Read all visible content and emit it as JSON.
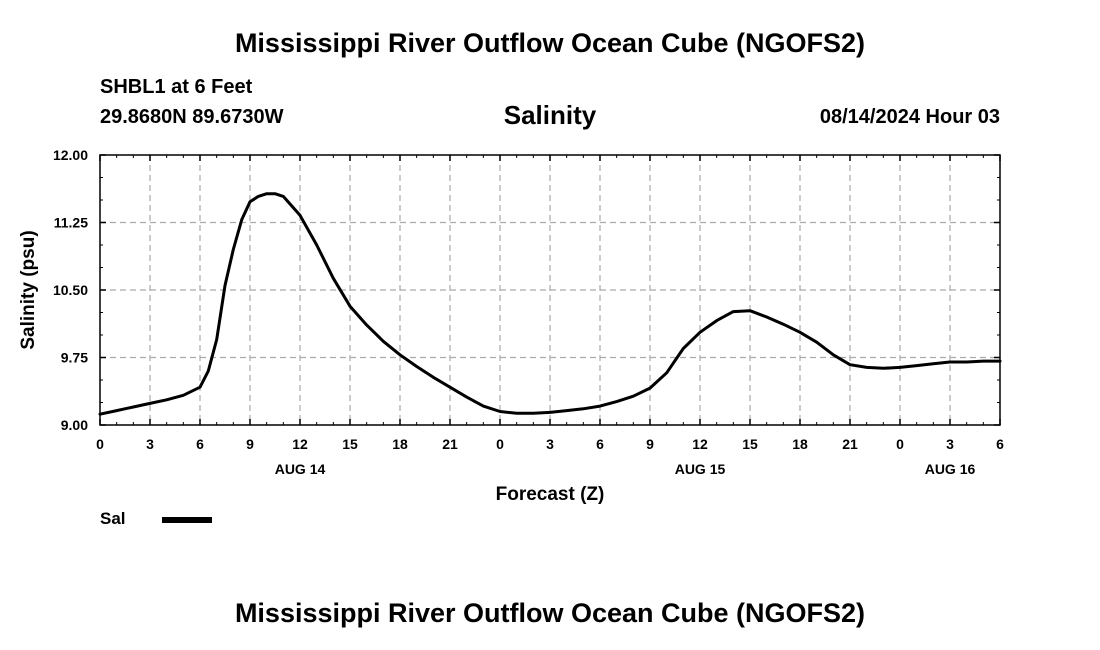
{
  "header": {
    "title": "Mississippi River Outflow Ocean Cube (NGOFS2)",
    "station": "SHBL1 at 6 Feet",
    "coords": "29.8680N  89.6730W",
    "subtitle": "Salinity",
    "datetime": "08/14/2024 Hour 03"
  },
  "footer": {
    "title": "Mississippi River Outflow Ocean Cube (NGOFS2)"
  },
  "legend": {
    "label": "Sal"
  },
  "chart_data": {
    "type": "line",
    "title": "Salinity",
    "xlabel": "Forecast (Z)",
    "ylabel": "Salinity (psu)",
    "ylim": [
      9.0,
      12.0
    ],
    "xlim": [
      0,
      54
    ],
    "grid": true,
    "legend_position": "bottom-left",
    "y_ticks": [
      "9.00",
      "9.75",
      "10.50",
      "11.25",
      "12.00"
    ],
    "y_tick_values": [
      9.0,
      9.75,
      10.5,
      11.25,
      12.0
    ],
    "x_ticks": [
      "0",
      "3",
      "6",
      "9",
      "12",
      "15",
      "18",
      "21",
      "0",
      "3",
      "6",
      "9",
      "12",
      "15",
      "18",
      "21",
      "0",
      "3",
      "6"
    ],
    "day_labels": [
      {
        "label": "AUG 14",
        "hour": 12
      },
      {
        "label": "AUG 15",
        "hour": 36
      },
      {
        "label": "AUG 16",
        "hour": 51
      }
    ],
    "series": [
      {
        "name": "Sal",
        "color": "#000000",
        "x": [
          0,
          1,
          2,
          3,
          4,
          5,
          6,
          6.5,
          7,
          7.5,
          8,
          8.5,
          9,
          9.5,
          10,
          10.5,
          11,
          12,
          13,
          14,
          15,
          16,
          17,
          18,
          19,
          20,
          21,
          22,
          23,
          24,
          25,
          26,
          27,
          28,
          29,
          30,
          31,
          32,
          33,
          34,
          35,
          36,
          37,
          38,
          39,
          40,
          41,
          42,
          43,
          44,
          45,
          46,
          47,
          48,
          49,
          50,
          51,
          52,
          53,
          54
        ],
        "values": [
          9.12,
          9.16,
          9.2,
          9.24,
          9.28,
          9.33,
          9.42,
          9.6,
          9.95,
          10.55,
          10.95,
          11.28,
          11.48,
          11.54,
          11.57,
          11.57,
          11.54,
          11.33,
          11.0,
          10.63,
          10.32,
          10.11,
          9.93,
          9.78,
          9.65,
          9.53,
          9.42,
          9.31,
          9.21,
          9.15,
          9.13,
          9.13,
          9.14,
          9.16,
          9.18,
          9.21,
          9.26,
          9.32,
          9.41,
          9.58,
          9.85,
          10.03,
          10.16,
          10.26,
          10.27,
          10.2,
          10.12,
          10.03,
          9.92,
          9.78,
          9.67,
          9.64,
          9.63,
          9.64,
          9.66,
          9.68,
          9.7,
          9.7,
          9.71,
          9.71
        ]
      }
    ]
  }
}
